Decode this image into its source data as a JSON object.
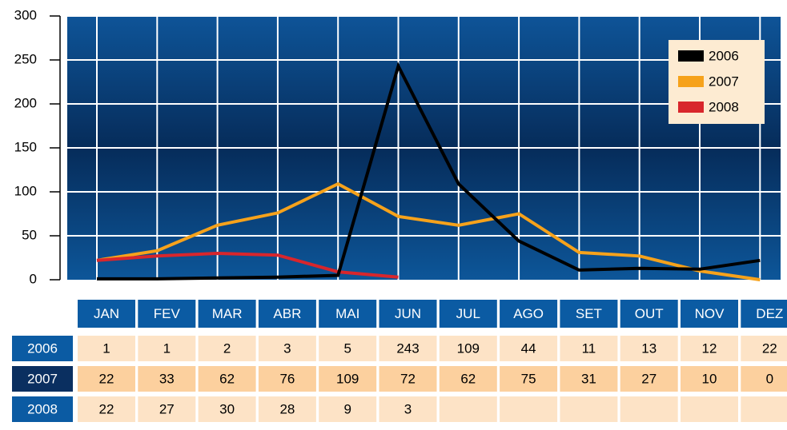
{
  "chart_data": {
    "type": "line",
    "categories": [
      "JAN",
      "FEV",
      "MAR",
      "ABR",
      "MAI",
      "JUN",
      "JUL",
      "AGO",
      "SET",
      "OUT",
      "NOV",
      "DEZ"
    ],
    "series": [
      {
        "name": "2006",
        "color": "#000000",
        "values": [
          1,
          1,
          2,
          3,
          5,
          243,
          109,
          44,
          11,
          13,
          12,
          22
        ]
      },
      {
        "name": "2007",
        "color": "#f6a21b",
        "values": [
          22,
          33,
          62,
          76,
          109,
          72,
          62,
          75,
          31,
          27,
          10,
          0
        ]
      },
      {
        "name": "2008",
        "color": "#d8262c",
        "values": [
          22,
          27,
          30,
          28,
          9,
          3,
          null,
          null,
          null,
          null,
          null,
          null
        ]
      }
    ],
    "ylim": [
      0,
      300
    ],
    "yticks": [
      0,
      50,
      100,
      150,
      200,
      250,
      300
    ],
    "grid": true,
    "legend": "upper right"
  }
}
